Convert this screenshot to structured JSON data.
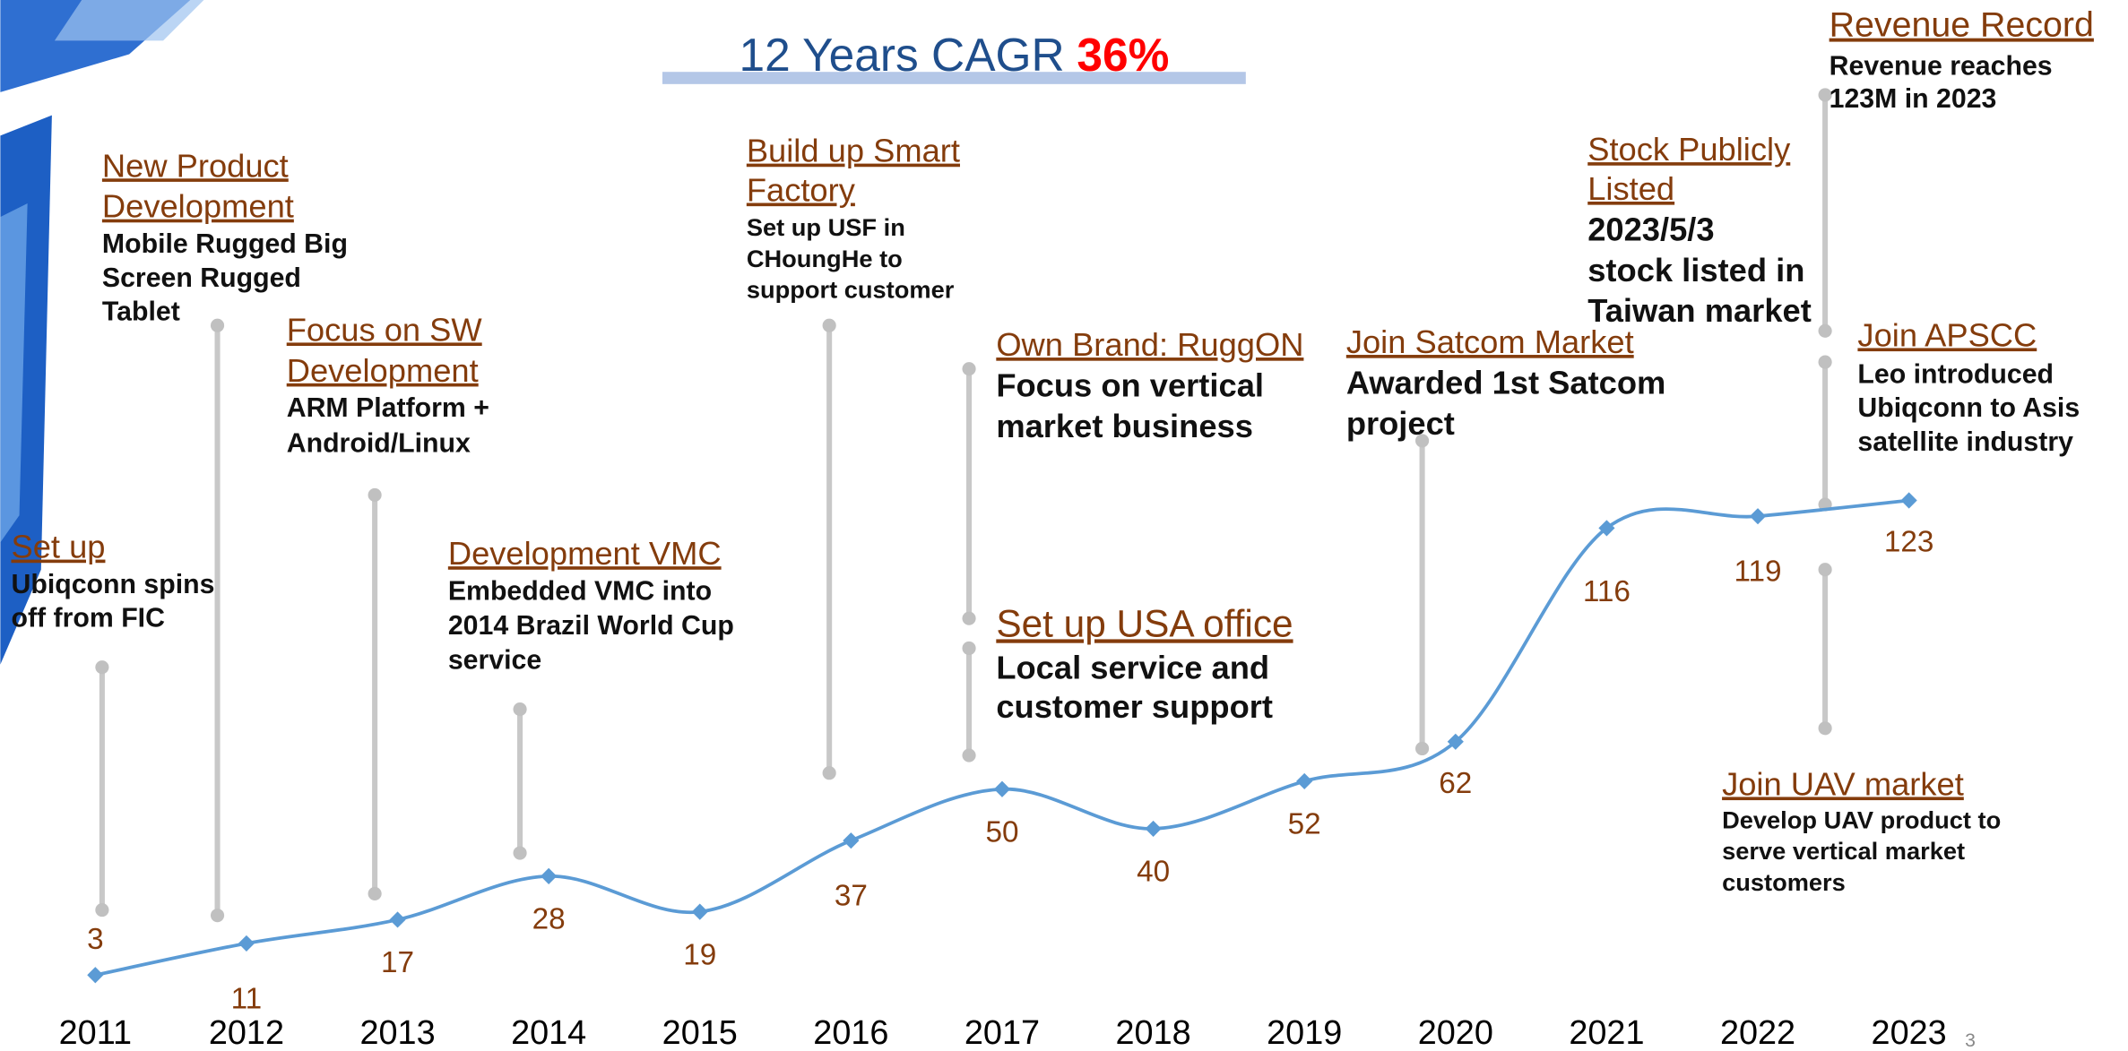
{
  "title": {
    "text": "12 Years CAGR",
    "highlight": "36%"
  },
  "page_number": "3",
  "chart_data": {
    "type": "line",
    "categories": [
      "2011",
      "2012",
      "2013",
      "2014",
      "2015",
      "2016",
      "2017",
      "2018",
      "2019",
      "2020",
      "2021",
      "2022",
      "2023"
    ],
    "values": [
      3,
      11,
      17,
      28,
      19,
      37,
      50,
      40,
      52,
      62,
      116,
      119,
      123
    ],
    "color": "#5b9bd5"
  },
  "milestones": [
    {
      "title": [
        "Set up"
      ],
      "description": [
        "Ubiqconn spins",
        "off from FIC"
      ]
    },
    {
      "title": [
        "New Product",
        "Development"
      ],
      "description": [
        "Mobile Rugged Big",
        "Screen Rugged",
        "Tablet"
      ]
    },
    {
      "title": [
        "Focus on SW",
        "Development"
      ],
      "description": [
        "ARM Platform +",
        "Android/Linux"
      ]
    },
    {
      "title": [
        "Development VMC"
      ],
      "description": [
        "Embedded VMC into",
        "2014 Brazil World Cup",
        "service"
      ]
    },
    {
      "title": [
        "Build up Smart",
        "Factory"
      ],
      "description": [
        "Set up USF in",
        "CHoungHe to",
        "support customer"
      ]
    },
    {
      "title": [
        "Own Brand: RuggON"
      ],
      "description": [
        "Focus on vertical",
        "market business"
      ]
    },
    {
      "title": [
        "Set up USA office"
      ],
      "description": [
        "Local service and",
        "customer support"
      ]
    },
    {
      "title": [
        "Join Satcom Market"
      ],
      "description": [
        "Awarded 1st Satcom",
        "project"
      ]
    },
    {
      "title": [
        "Stock Publicly",
        "Listed"
      ],
      "description": [
        "2023/5/3",
        "stock listed in",
        "Taiwan market"
      ]
    },
    {
      "title": [
        "Revenue Record"
      ],
      "description": [
        "Revenue reaches",
        "123M in 2023"
      ]
    },
    {
      "title": [
        "Join APSCC"
      ],
      "description": [
        "Leo introduced",
        "Ubiqconn to Asis",
        "satellite industry"
      ]
    },
    {
      "title": [
        "Join UAV market"
      ],
      "description": [
        "Develop UAV product to",
        "serve vertical market",
        "customers"
      ]
    }
  ]
}
